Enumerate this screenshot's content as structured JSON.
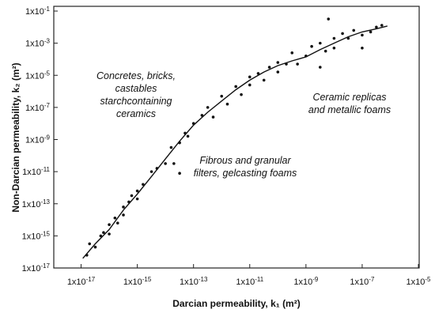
{
  "chart_data": {
    "type": "scatter",
    "xlabel": "Darcian permeability, k₁ (m²)",
    "ylabel": "Non-Darcian permeability, k₂ (m²)",
    "log_x": true,
    "log_y": true,
    "color": "#111111",
    "xlim": [
      1e-18,
      1e-05
    ],
    "ylim": [
      1e-17,
      0.1
    ],
    "xticks": [
      {
        "value": 1e-17,
        "label": "1x10-17"
      },
      {
        "value": 1e-15,
        "label": "1x10-15"
      },
      {
        "value": 1e-13,
        "label": "1x10-13"
      },
      {
        "value": 1e-11,
        "label": "1x10-11"
      },
      {
        "value": 1e-09,
        "label": "1x10-9"
      },
      {
        "value": 1e-07,
        "label": "1x10-7"
      },
      {
        "value": 1e-05,
        "label": "1x10-5"
      }
    ],
    "yticks": [
      {
        "value": 1e-17,
        "label": "1x10-17"
      },
      {
        "value": 1e-15,
        "label": "1x10-15"
      },
      {
        "value": 1e-13,
        "label": "1x10-13"
      },
      {
        "value": 1e-11,
        "label": "1x10-11"
      },
      {
        "value": 1e-09,
        "label": "1x10-9"
      },
      {
        "value": 1e-07,
        "label": "1x10-7"
      },
      {
        "value": 1e-05,
        "label": "1x10-5"
      },
      {
        "value": 0.001,
        "label": "1x10-3"
      },
      {
        "value": 0.1,
        "label": "1x10-1"
      }
    ],
    "annotations": [
      [
        "Concretes, bricks,",
        "castables",
        "starchcontaining",
        "ceramics"
      ],
      [
        "Ceramic replicas",
        "and metallic foams"
      ],
      [
        "Fibrous and granular",
        "filters, gelcasting foams"
      ]
    ],
    "x": [
      1.6e-17,
      2e-17,
      3.2e-17,
      5e-17,
      6.3e-17,
      1e-16,
      1e-16,
      1.6e-16,
      2e-16,
      3.2e-16,
      3.2e-16,
      5e-16,
      6.3e-16,
      1e-15,
      1e-15,
      1.6e-15,
      3.2e-15,
      5e-15,
      1e-14,
      1.6e-14,
      2e-14,
      3.2e-14,
      5e-14,
      1e-13,
      6.3e-14,
      2e-13,
      3.2e-13,
      5e-13,
      1e-12,
      1.6e-12,
      3.2e-12,
      5e-12,
      1e-11,
      1e-11,
      2e-11,
      3.2e-11,
      5e-11,
      1e-10,
      1e-10,
      2e-10,
      3.2e-10,
      5e-10,
      1e-09,
      1.6e-09,
      3.2e-09,
      3.2e-09,
      5e-09,
      1e-08,
      1e-08,
      2e-08,
      3.2e-08,
      5e-08,
      1e-07,
      1e-07,
      2e-07,
      3.2e-07,
      5e-07,
      6.3e-09,
      3.2e-14
    ],
    "y": [
      6.3e-17,
      3.2e-16,
      2e-16,
      1e-15,
      1.6e-15,
      5e-15,
      1.3e-15,
      1.3e-14,
      6.3e-15,
      6.3e-14,
      2e-14,
      1.3e-13,
      3.2e-13,
      6.3e-13,
      2e-13,
      1.6e-12,
      1e-11,
      1.6e-11,
      3.2e-11,
      3.2e-10,
      3.2e-11,
      6.3e-10,
      2.5e-09,
      1e-08,
      1.6e-09,
      3.2e-08,
      1e-07,
      2.5e-08,
      5e-07,
      1.6e-07,
      2e-06,
      6.3e-07,
      7.9e-06,
      2.5e-06,
      1.3e-05,
      5e-06,
      3.2e-05,
      6.3e-05,
      1.6e-05,
      5e-05,
      0.00025,
      5e-05,
      0.00016,
      0.00063,
      0.001,
      3.2e-05,
      0.00032,
      0.002,
      0.0005,
      0.004,
      0.002,
      0.0063,
      0.0032,
      0.0005,
      0.005,
      0.01,
      0.013,
      0.032,
      7.9e-12
    ],
    "curve": {
      "x": [
        1.15e-17,
        3.2e-17,
        1e-16,
        3.2e-16,
        1e-15,
        3.2e-15,
        1e-14,
        3.2e-14,
        1e-13,
        3.2e-13,
        1e-12,
        3.2e-12,
        1e-11,
        3.2e-11,
        1e-10,
        3.2e-10,
        1e-09,
        3.2e-09,
        1e-08,
        3.2e-08,
        1e-07,
        3.2e-07,
        7.9e-07
      ],
      "y": [
        4e-17,
        3.2e-16,
        2.5e-15,
        4e-14,
        4e-13,
        5e-12,
        6.3e-11,
        7.9e-10,
        7.9e-09,
        5e-08,
        2.5e-07,
        1.26e-06,
        5e-06,
        1.6e-05,
        4e-05,
        7.9e-05,
        0.00014,
        0.0004,
        0.001,
        0.0025,
        0.005,
        0.0079,
        0.0117
      ]
    }
  }
}
